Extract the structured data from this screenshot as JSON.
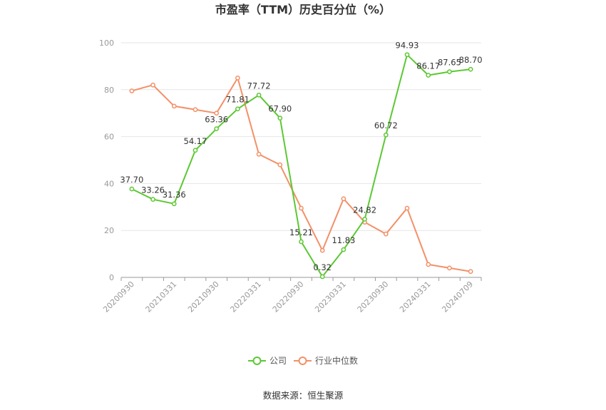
{
  "chart_data": {
    "type": "line",
    "title": "市盈率（TTM）历史百分位（%）",
    "source": "数据来源：恒生聚源",
    "ylim": [
      0,
      100
    ],
    "yticks": [
      "0",
      "20",
      "40",
      "60",
      "80",
      "100"
    ],
    "x_tick_labels": [
      "20200930",
      "20210331",
      "20210930",
      "20220331",
      "20220930",
      "20230331",
      "20230930",
      "20240331",
      "20240709"
    ],
    "x_tick_index": [
      0,
      2,
      4,
      6,
      8,
      10,
      12,
      14,
      16
    ],
    "grid": true,
    "legend_position": "bottom",
    "series": [
      {
        "name": "公司",
        "color": "#5cc833",
        "values": [
          37.7,
          33.26,
          31.36,
          54.17,
          63.36,
          71.81,
          77.72,
          67.9,
          15.21,
          0.32,
          11.83,
          24.82,
          60.72,
          94.93,
          86.17,
          87.65,
          88.7
        ],
        "labels": [
          "37.70",
          "33.26",
          "31.36",
          "54.17",
          "63.36",
          "71.81",
          "77.72",
          "67.90",
          "15.21",
          "0.32",
          "11.83",
          "24.82",
          "60.72",
          "94.93",
          "86.17",
          "87.65",
          "88.70"
        ]
      },
      {
        "name": "行业中位数",
        "color": "#f39067",
        "values": [
          79.5,
          82,
          73,
          71.5,
          70,
          85,
          52.5,
          48,
          29.5,
          11.5,
          33.5,
          23.5,
          18.5,
          29.5,
          5.5,
          4,
          2.5
        ]
      }
    ]
  }
}
